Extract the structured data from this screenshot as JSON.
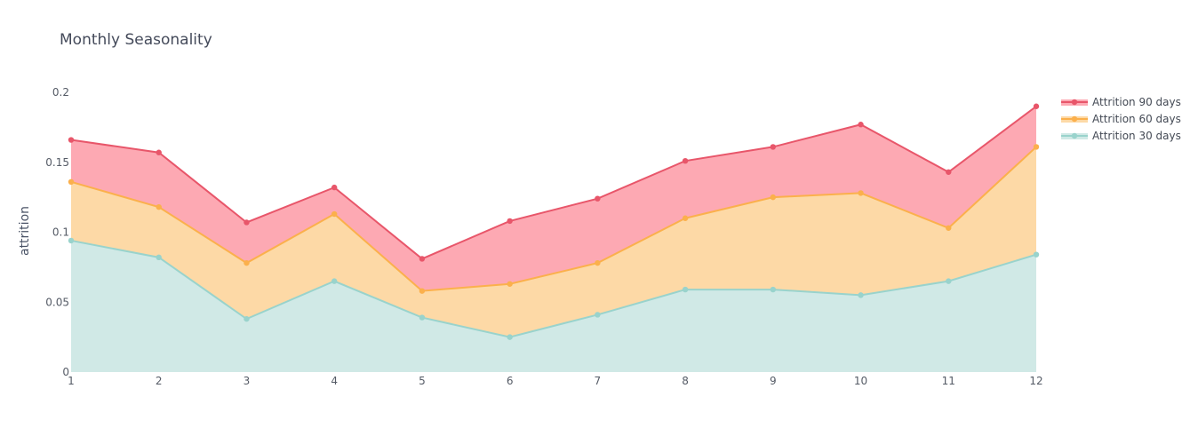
{
  "chart_data": {
    "type": "area",
    "stacked": true,
    "title": "Monthly Seasonality",
    "xlabel": "",
    "ylabel": "attrition",
    "x": [
      1,
      2,
      3,
      4,
      5,
      6,
      7,
      8,
      9,
      10,
      11,
      12
    ],
    "x_tick_labels": [
      "1",
      "2",
      "3",
      "4",
      "5",
      "6",
      "7",
      "8",
      "9",
      "10",
      "11",
      "12"
    ],
    "y_tick_values": [
      0,
      0.05,
      0.1,
      0.15,
      0.2
    ],
    "y_tick_labels": [
      "0",
      "0.05",
      "0.1",
      "0.15",
      "0.2"
    ],
    "ylim": [
      0,
      0.2
    ],
    "grid": false,
    "legend_position": "top-right",
    "series": [
      {
        "name": "Attrition 30 days",
        "line_color": "#99d3cc",
        "fill_color": "#d0e9e6",
        "values": [
          0.094,
          0.082,
          0.038,
          0.065,
          0.039,
          0.025,
          0.041,
          0.059,
          0.059,
          0.055,
          0.065,
          0.084
        ]
      },
      {
        "name": "Attrition 60 days",
        "line_color": "#fbb04c",
        "fill_color": "#fdd9a6",
        "cumulative_values": [
          0.136,
          0.118,
          0.078,
          0.113,
          0.058,
          0.063,
          0.078,
          0.11,
          0.125,
          0.128,
          0.103,
          0.161
        ]
      },
      {
        "name": "Attrition 90 days",
        "line_color": "#e8566a",
        "fill_color": "#fda9b3",
        "cumulative_values": [
          0.166,
          0.157,
          0.107,
          0.132,
          0.081,
          0.108,
          0.124,
          0.151,
          0.161,
          0.177,
          0.143,
          0.19
        ]
      }
    ],
    "legend_order": [
      "Attrition 90 days",
      "Attrition 60 days",
      "Attrition 30 days"
    ]
  }
}
